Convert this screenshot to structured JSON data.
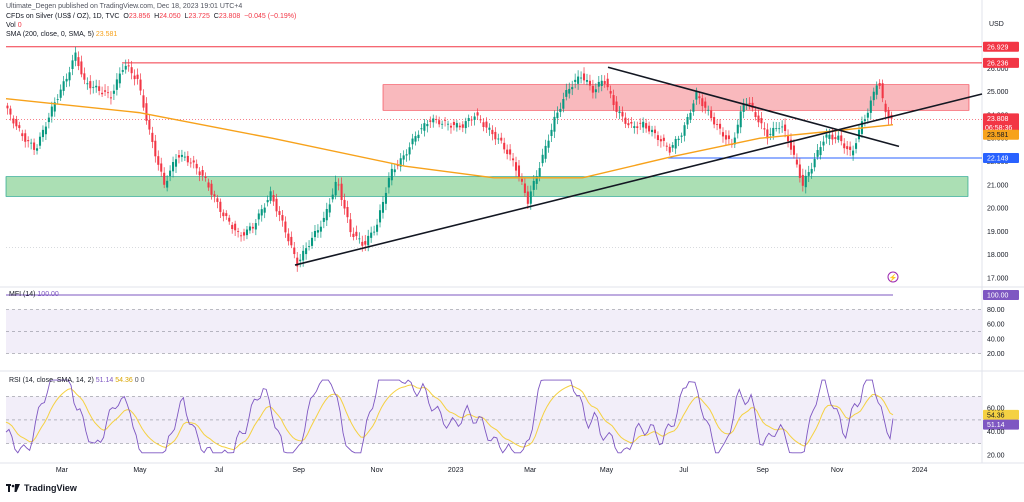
{
  "header": {
    "publisher": "Ultimate_Degen published on TradingView.com, Dec 18, 2023 19:01 UTC+4",
    "symbol_line": "CFDs on Silver (US$ / OZ), 1D, TVC",
    "ohlc": {
      "o_label": "O",
      "o": "23.856",
      "h_label": "H",
      "h": "24.050",
      "l_label": "L",
      "l": "23.725",
      "c_label": "C",
      "c": "23.808",
      "chg": "−0.045 (−0.19%)"
    },
    "vol_label": "Vol",
    "vol": "0",
    "sma_label": "SMA (200, close, 0, SMA, 5)",
    "sma_value": "23.581",
    "currency": "USD"
  },
  "mfi": {
    "label": "MFI (14)",
    "value": "100.00",
    "badge": "100.00",
    "ticks": [
      "80.00",
      "60.00",
      "40.00",
      "20.00"
    ]
  },
  "rsi": {
    "label": "RSI (14, close, SMA, 14, 2)",
    "value1": "51.14",
    "value2": "54.36",
    "extra": "0  0",
    "ticks": [
      "60.00",
      "40.00",
      "20.00"
    ],
    "badge_ma": "54.36",
    "badge_rsi": "51.14"
  },
  "price_axis": {
    "ticks": [
      "26.000",
      "25.000",
      "24.000",
      "23.000",
      "22.000",
      "21.000",
      "20.000",
      "19.000",
      "18.000",
      "17.000"
    ],
    "badges": {
      "top_resistance": "26.929",
      "resistance": "26.236",
      "last": "23.808",
      "countdown": "06:58:36",
      "sma": "23.581",
      "support": "22.149"
    }
  },
  "time_axis": [
    "Mar",
    "May",
    "Jul",
    "Sep",
    "Nov",
    "2023",
    "Mar",
    "May",
    "Jul",
    "Sep",
    "Nov",
    "2024"
  ],
  "brand": "TradingView",
  "colors": {
    "up": "#089981",
    "down": "#f23645",
    "sma": "#f7a21b",
    "red_zone": "#f7a1a7",
    "green_zone": "#8fd49b",
    "blue_line": "#2962ff",
    "rsi_line": "#7e57c2",
    "rsi_ma": "#f5d142",
    "band": "#ede7f6",
    "trend": "#131722"
  },
  "chart_data": {
    "type": "candlestick",
    "symbol": "CFDs on Silver (US$ / OZ)",
    "interval": "1D",
    "ylim": [
      17.0,
      27.3
    ],
    "x_labels": [
      "Mar",
      "May",
      "Jul",
      "Sep",
      "Nov",
      "2023",
      "Mar",
      "May",
      "Jul",
      "Sep",
      "Nov",
      "2024"
    ],
    "price_path": [
      {
        "t": 0.0,
        "p": 24.4
      },
      {
        "t": 0.02,
        "p": 23.1
      },
      {
        "t": 0.035,
        "p": 22.5
      },
      {
        "t": 0.055,
        "p": 24.4
      },
      {
        "t": 0.07,
        "p": 25.6
      },
      {
        "t": 0.08,
        "p": 26.6
      },
      {
        "t": 0.09,
        "p": 25.4
      },
      {
        "t": 0.105,
        "p": 25.1
      },
      {
        "t": 0.12,
        "p": 24.8
      },
      {
        "t": 0.135,
        "p": 26.2
      },
      {
        "t": 0.15,
        "p": 25.5
      },
      {
        "t": 0.165,
        "p": 23.0
      },
      {
        "t": 0.18,
        "p": 21.0
      },
      {
        "t": 0.195,
        "p": 22.3
      },
      {
        "t": 0.21,
        "p": 22.0
      },
      {
        "t": 0.225,
        "p": 21.3
      },
      {
        "t": 0.245,
        "p": 19.8
      },
      {
        "t": 0.265,
        "p": 18.8
      },
      {
        "t": 0.28,
        "p": 19.2
      },
      {
        "t": 0.3,
        "p": 20.6
      },
      {
        "t": 0.315,
        "p": 19.2
      },
      {
        "t": 0.33,
        "p": 17.6
      },
      {
        "t": 0.345,
        "p": 18.6
      },
      {
        "t": 0.36,
        "p": 19.5
      },
      {
        "t": 0.375,
        "p": 21.2
      },
      {
        "t": 0.39,
        "p": 19.0
      },
      {
        "t": 0.405,
        "p": 18.4
      },
      {
        "t": 0.42,
        "p": 19.3
      },
      {
        "t": 0.435,
        "p": 21.5
      },
      {
        "t": 0.45,
        "p": 22.2
      },
      {
        "t": 0.465,
        "p": 23.2
      },
      {
        "t": 0.48,
        "p": 23.8
      },
      {
        "t": 0.5,
        "p": 23.6
      },
      {
        "t": 0.515,
        "p": 23.5
      },
      {
        "t": 0.53,
        "p": 24.0
      },
      {
        "t": 0.545,
        "p": 23.4
      },
      {
        "t": 0.56,
        "p": 22.8
      },
      {
        "t": 0.575,
        "p": 21.9
      },
      {
        "t": 0.59,
        "p": 20.3
      },
      {
        "t": 0.605,
        "p": 22.0
      },
      {
        "t": 0.62,
        "p": 23.8
      },
      {
        "t": 0.635,
        "p": 25.1
      },
      {
        "t": 0.65,
        "p": 25.7
      },
      {
        "t": 0.665,
        "p": 25.0
      },
      {
        "t": 0.675,
        "p": 25.6
      },
      {
        "t": 0.69,
        "p": 24.2
      },
      {
        "t": 0.705,
        "p": 23.5
      },
      {
        "t": 0.72,
        "p": 23.6
      },
      {
        "t": 0.735,
        "p": 23.1
      },
      {
        "t": 0.75,
        "p": 22.5
      },
      {
        "t": 0.765,
        "p": 23.3
      },
      {
        "t": 0.78,
        "p": 24.9
      },
      {
        "t": 0.79,
        "p": 24.3
      },
      {
        "t": 0.805,
        "p": 23.4
      },
      {
        "t": 0.82,
        "p": 22.7
      },
      {
        "t": 0.835,
        "p": 24.7
      },
      {
        "t": 0.845,
        "p": 24.1
      },
      {
        "t": 0.86,
        "p": 23.1
      },
      {
        "t": 0.875,
        "p": 23.6
      },
      {
        "t": 0.885,
        "p": 22.8
      },
      {
        "t": 0.9,
        "p": 21.0
      },
      {
        "t": 0.91,
        "p": 21.8
      },
      {
        "t": 0.925,
        "p": 23.1
      },
      {
        "t": 0.94,
        "p": 23.0
      },
      {
        "t": 0.955,
        "p": 22.3
      },
      {
        "t": 0.965,
        "p": 23.5
      },
      {
        "t": 0.975,
        "p": 24.3
      },
      {
        "t": 0.985,
        "p": 25.6
      },
      {
        "t": 0.992,
        "p": 24.2
      },
      {
        "t": 1.0,
        "p": 23.8
      }
    ],
    "sma200_path": [
      {
        "t": 0.0,
        "p": 24.7
      },
      {
        "t": 0.15,
        "p": 24.1
      },
      {
        "t": 0.3,
        "p": 23.0
      },
      {
        "t": 0.45,
        "p": 21.8
      },
      {
        "t": 0.55,
        "p": 21.3
      },
      {
        "t": 0.65,
        "p": 21.3
      },
      {
        "t": 0.75,
        "p": 22.2
      },
      {
        "t": 0.85,
        "p": 23.0
      },
      {
        "t": 0.93,
        "p": 23.3
      },
      {
        "t": 1.0,
        "p": 23.58
      }
    ],
    "levels": {
      "resistance_top": 26.929,
      "resistance": 26.236,
      "support": 22.149,
      "last": 23.808,
      "sma": 23.581
    },
    "zones": [
      {
        "name": "supply",
        "from": 24.2,
        "to": 25.3
      },
      {
        "name": "demand",
        "from": 20.5,
        "to": 21.35
      }
    ],
    "mfi_value": 100.0,
    "rsi_value": 51.14,
    "rsi_ma_value": 54.36
  }
}
